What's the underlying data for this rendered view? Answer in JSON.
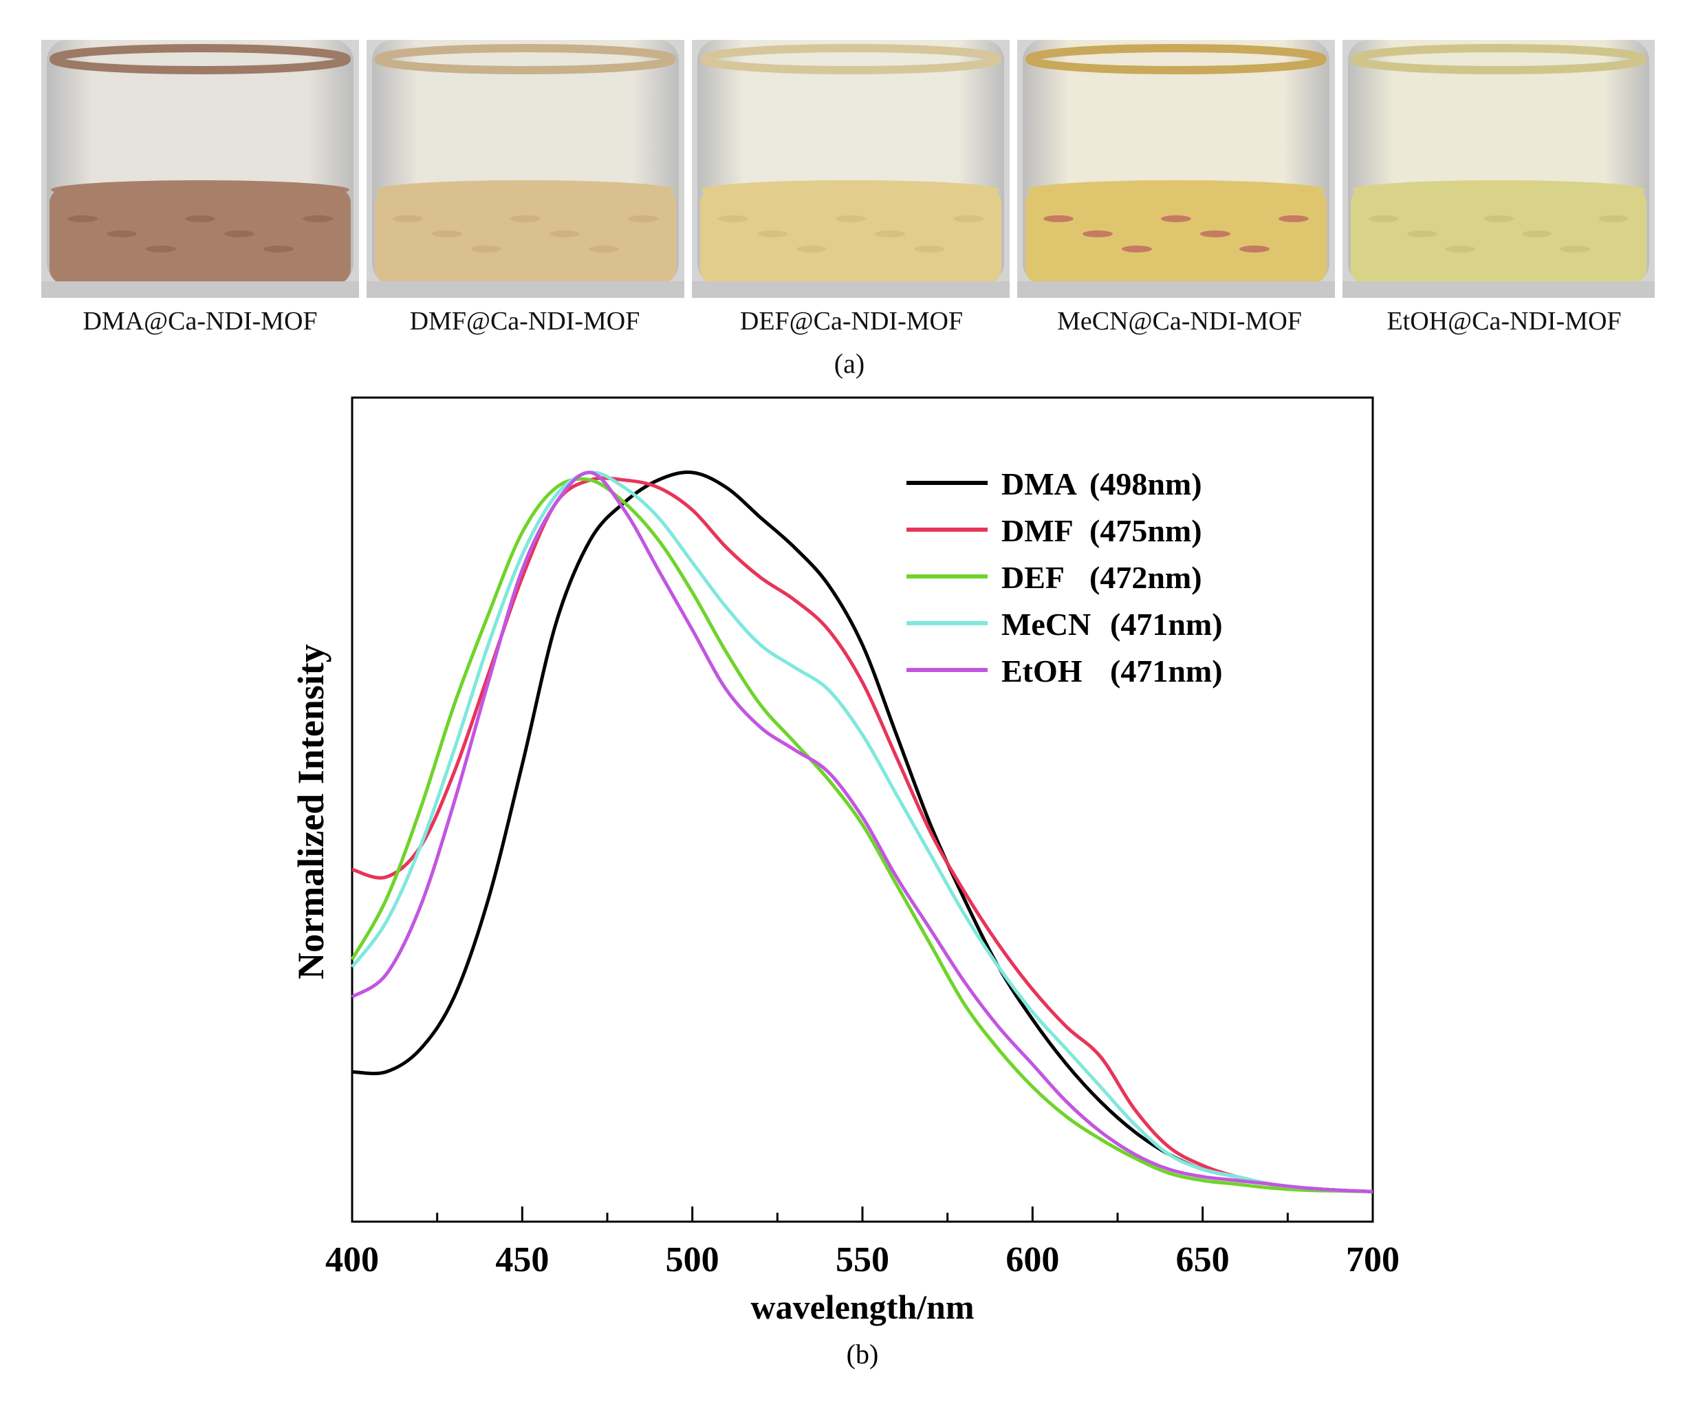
{
  "panel_a": {
    "label": "(a)",
    "vials": [
      {
        "caption": "DMA@Ca-NDI-MOF",
        "powder_color": "#a8806a",
        "powder_dark": "#8a604c",
        "rim_color": "#9c7a66",
        "liquid_color": "#e6e2dc"
      },
      {
        "caption": "DMF@Ca-NDI-MOF",
        "powder_color": "#d9c08e",
        "powder_dark": "#c6a878",
        "rim_color": "#c8b08a",
        "liquid_color": "#e9e6dc"
      },
      {
        "caption": "DEF@Ca-NDI-MOF",
        "powder_color": "#e2cd8c",
        "powder_dark": "#d2b878",
        "rim_color": "#d6c69a",
        "liquid_color": "#ece9dd"
      },
      {
        "caption": "MeCN@Ca-NDI-MOF",
        "powder_color": "#e0c56f",
        "powder_dark": "#b04a5a",
        "rim_color": "#c9a85a",
        "liquid_color": "#eee9d8"
      },
      {
        "caption": "EtOH@Ca-NDI-MOF",
        "powder_color": "#d9d38a",
        "powder_dark": "#c4bd74",
        "rim_color": "#cfc58a",
        "liquid_color": "#ece9d6"
      }
    ]
  },
  "panel_b": {
    "label": "(b)"
  },
  "chart_data": {
    "type": "line",
    "xlabel": "wavelength/nm",
    "ylabel": "Normalized Intensity",
    "xlim": [
      400,
      700
    ],
    "ylim": [
      0,
      1.1
    ],
    "x_ticks": [
      "400",
      "450",
      "500",
      "550",
      "600",
      "650",
      "700"
    ],
    "x_minor_tick_step": 25,
    "grid": false,
    "legend_position": "top-right",
    "series": [
      {
        "name": "DMA",
        "peak": "(498nm)",
        "color": "#000000",
        "x": [
          400,
          410,
          420,
          430,
          440,
          450,
          460,
          470,
          480,
          490,
          500,
          510,
          520,
          530,
          540,
          550,
          560,
          570,
          580,
          590,
          600,
          610,
          620,
          630,
          640,
          650,
          660,
          670,
          680,
          690,
          700
        ],
        "y": [
          0.2,
          0.2,
          0.23,
          0.3,
          0.43,
          0.61,
          0.8,
          0.91,
          0.96,
          0.99,
          1.0,
          0.98,
          0.94,
          0.9,
          0.85,
          0.77,
          0.65,
          0.53,
          0.43,
          0.34,
          0.27,
          0.21,
          0.16,
          0.12,
          0.09,
          0.07,
          0.06,
          0.05,
          0.045,
          0.042,
          0.04
        ]
      },
      {
        "name": "DMF",
        "peak": "(475nm)",
        "color": "#e8345a",
        "x": [
          400,
          410,
          420,
          430,
          440,
          450,
          460,
          470,
          480,
          490,
          500,
          510,
          520,
          530,
          540,
          550,
          560,
          570,
          580,
          590,
          600,
          610,
          620,
          630,
          640,
          650,
          660,
          670,
          680,
          690,
          700
        ],
        "y": [
          0.47,
          0.46,
          0.5,
          0.6,
          0.73,
          0.86,
          0.96,
          0.99,
          0.99,
          0.98,
          0.95,
          0.9,
          0.86,
          0.83,
          0.79,
          0.72,
          0.62,
          0.52,
          0.44,
          0.37,
          0.31,
          0.26,
          0.22,
          0.15,
          0.1,
          0.075,
          0.06,
          0.05,
          0.045,
          0.042,
          0.04
        ]
      },
      {
        "name": "DEF",
        "peak": "(472nm)",
        "color": "#6fd42a",
        "x": [
          400,
          410,
          420,
          430,
          440,
          450,
          460,
          470,
          480,
          490,
          500,
          510,
          520,
          530,
          540,
          550,
          560,
          570,
          580,
          590,
          600,
          610,
          620,
          630,
          640,
          650,
          660,
          670,
          680,
          690,
          700
        ],
        "y": [
          0.35,
          0.43,
          0.55,
          0.69,
          0.81,
          0.92,
          0.98,
          0.99,
          0.96,
          0.91,
          0.84,
          0.76,
          0.69,
          0.64,
          0.59,
          0.53,
          0.45,
          0.37,
          0.29,
          0.23,
          0.18,
          0.14,
          0.11,
          0.085,
          0.065,
          0.055,
          0.05,
          0.045,
          0.042,
          0.041,
          0.04
        ]
      },
      {
        "name": "MeCN",
        "peak": "(471nm)",
        "color": "#7fe8dc",
        "x": [
          400,
          410,
          420,
          430,
          440,
          450,
          460,
          470,
          480,
          490,
          500,
          510,
          520,
          530,
          540,
          550,
          560,
          570,
          580,
          590,
          600,
          610,
          620,
          630,
          640,
          650,
          660,
          670,
          680,
          690,
          700
        ],
        "y": [
          0.34,
          0.4,
          0.5,
          0.63,
          0.77,
          0.89,
          0.97,
          1.0,
          0.98,
          0.94,
          0.88,
          0.82,
          0.77,
          0.74,
          0.71,
          0.65,
          0.57,
          0.49,
          0.41,
          0.34,
          0.28,
          0.23,
          0.18,
          0.13,
          0.09,
          0.07,
          0.06,
          0.05,
          0.045,
          0.042,
          0.04
        ]
      },
      {
        "name": "EtOH",
        "peak": "(471nm)",
        "color": "#c256e0",
        "x": [
          400,
          410,
          420,
          430,
          440,
          450,
          460,
          470,
          480,
          490,
          500,
          510,
          520,
          530,
          540,
          550,
          560,
          570,
          580,
          590,
          600,
          610,
          620,
          630,
          640,
          650,
          660,
          670,
          680,
          690,
          700
        ],
        "y": [
          0.3,
          0.33,
          0.42,
          0.56,
          0.72,
          0.87,
          0.96,
          1.0,
          0.95,
          0.87,
          0.79,
          0.71,
          0.66,
          0.63,
          0.6,
          0.54,
          0.46,
          0.39,
          0.32,
          0.26,
          0.21,
          0.16,
          0.12,
          0.09,
          0.07,
          0.06,
          0.055,
          0.05,
          0.045,
          0.042,
          0.04
        ]
      }
    ]
  }
}
